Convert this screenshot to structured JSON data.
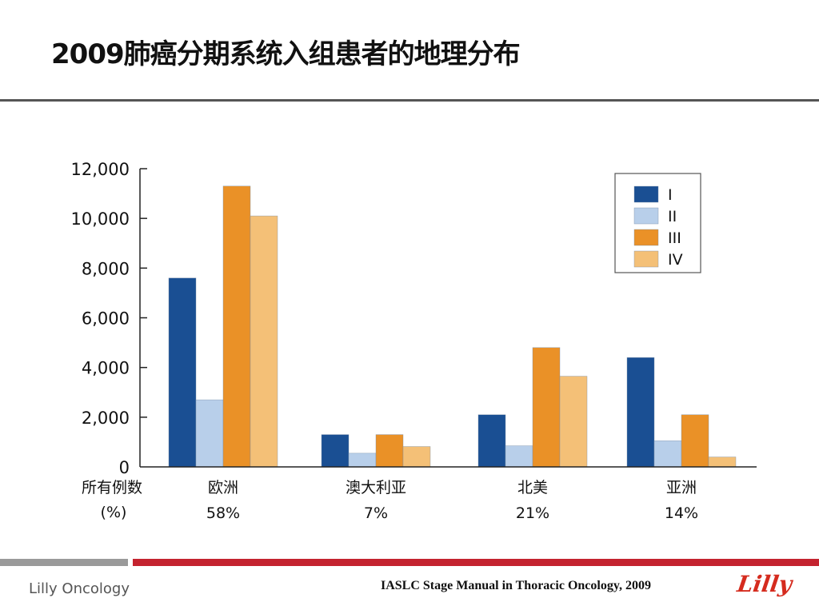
{
  "slide": {
    "title": "2009肺癌分期系统入组患者的地理分布",
    "brand": "Lilly Oncology",
    "citation": "IASLC Stage Manual  in Thoracic Oncology, 2009",
    "logo_text": "Lilly"
  },
  "chart_data": {
    "type": "bar",
    "title": "",
    "xlabel": "",
    "ylabel": "",
    "ylim": [
      0,
      12000
    ],
    "yticks": [
      "0",
      "2,000",
      "4,000",
      "6,000",
      "8,000",
      "10,000",
      "12,000"
    ],
    "ytick_values": [
      0,
      2000,
      4000,
      6000,
      8000,
      10000,
      12000
    ],
    "row_header": "所有例数",
    "row_header_unit": "(%)",
    "categories": [
      "欧洲",
      "澳大利亚",
      "北美",
      "亚洲"
    ],
    "category_percent": [
      "58%",
      "7%",
      "21%",
      "14%"
    ],
    "series": [
      {
        "name": "I",
        "color": "#1a4f93",
        "values": [
          7600,
          1300,
          2100,
          4400
        ]
      },
      {
        "name": "II",
        "color": "#b8cfea",
        "values": [
          2700,
          550,
          850,
          1050
        ]
      },
      {
        "name": "III",
        "color": "#ea9127",
        "values": [
          11300,
          1300,
          4800,
          2100
        ]
      },
      {
        "name": "IV",
        "color": "#f4c077",
        "values": [
          10100,
          820,
          3650,
          400
        ]
      }
    ],
    "legend_position": "top-right",
    "grid": false
  }
}
